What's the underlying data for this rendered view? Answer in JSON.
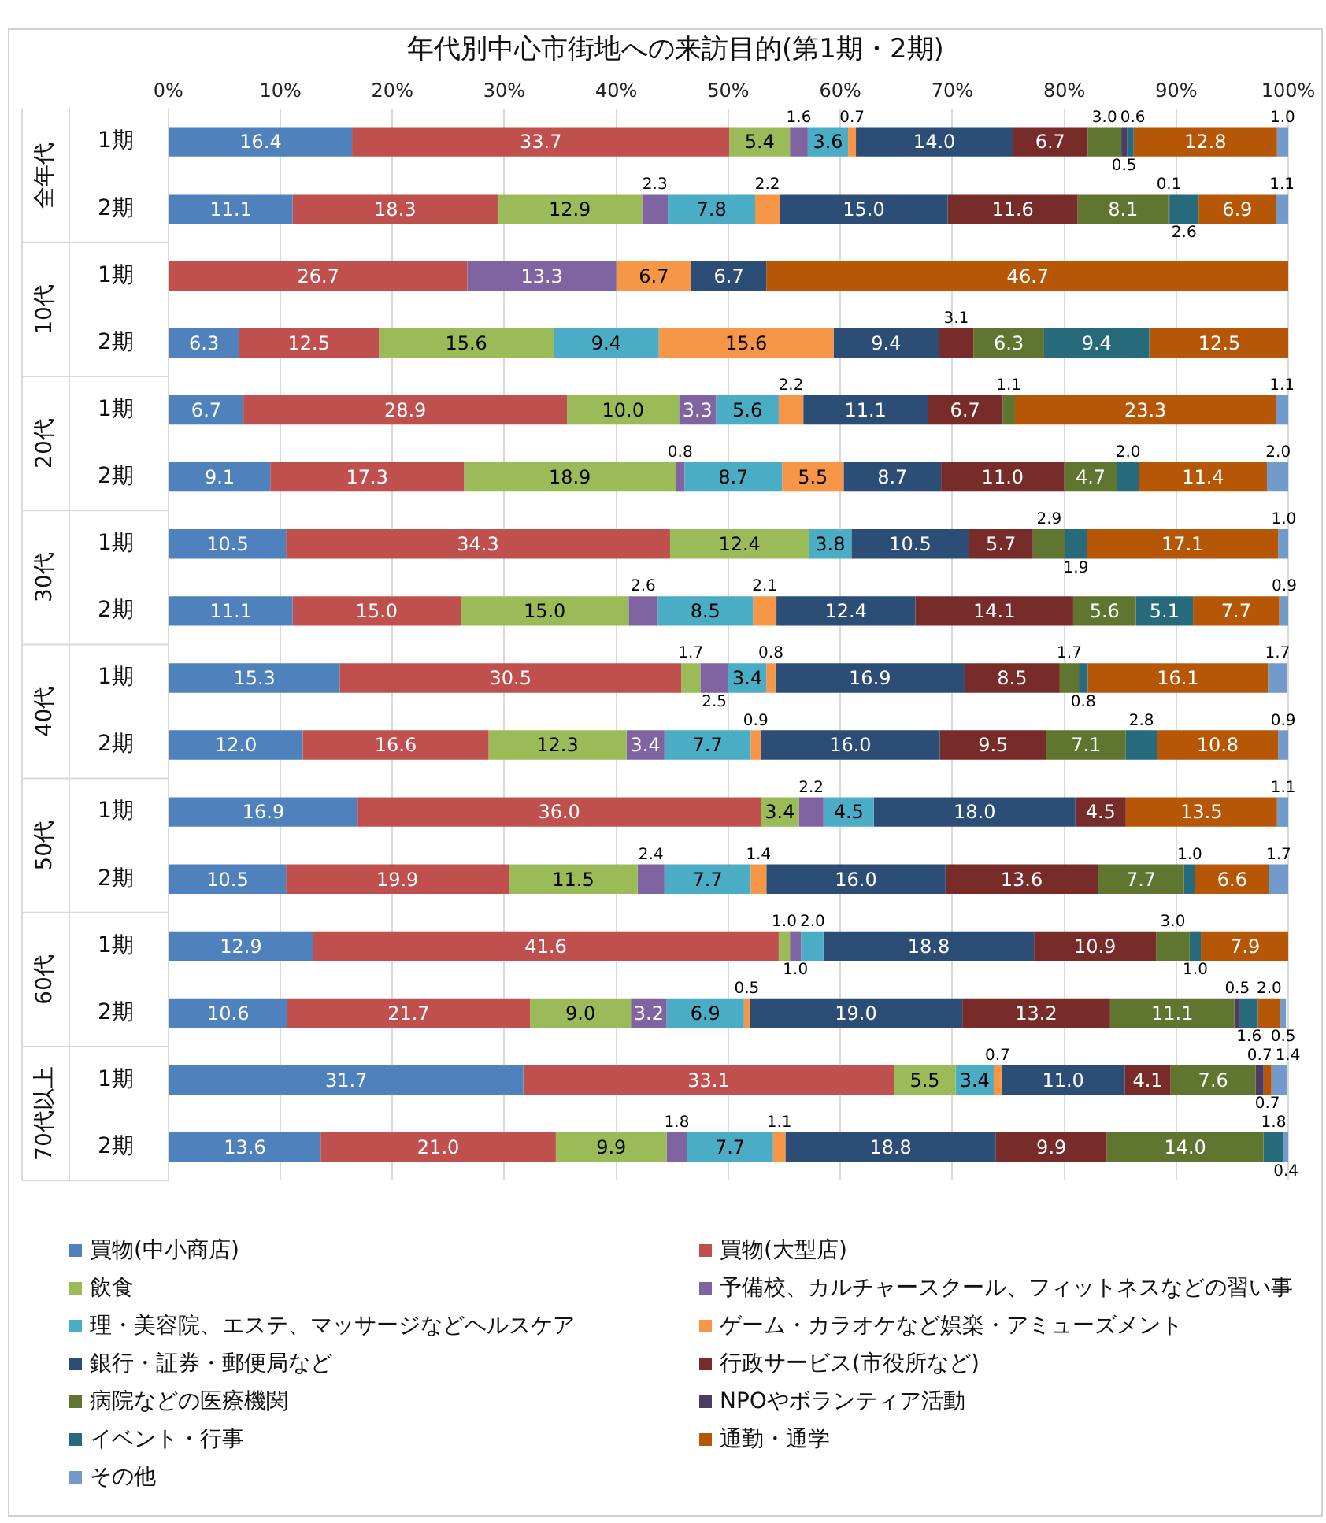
{
  "chart_data": {
    "type": "bar",
    "orientation": "horizontal",
    "stacked": true,
    "title": "年代別中心市街地への来訪目的(第1期・2期)",
    "categories": [
      "1期",
      "2期",
      "1期",
      "2期",
      "1期",
      "2期",
      "1期",
      "2期",
      "1期",
      "2期",
      "1期",
      "2期",
      "1期",
      "2期",
      "1期",
      "2期"
    ],
    "annotations": [
      "全年代",
      "10代",
      "20代",
      "30代",
      "40代",
      "50代",
      "60代",
      "70代以上"
    ],
    "xlim": [
      0,
      100
    ],
    "xticks": [
      {
        "value": 0,
        "label": "0%"
      },
      {
        "value": 10,
        "label": "10%"
      },
      {
        "value": 20,
        "label": "20%"
      },
      {
        "value": 30,
        "label": "30%"
      },
      {
        "value": 40,
        "label": "40%"
      },
      {
        "value": 50,
        "label": "50%"
      },
      {
        "value": 60,
        "label": "60%"
      },
      {
        "value": 70,
        "label": "70%"
      },
      {
        "value": 80,
        "label": "80%"
      },
      {
        "value": 90,
        "label": "90%"
      },
      {
        "value": 100,
        "label": "100%"
      }
    ],
    "grid": "x",
    "legend": "bottom",
    "series": [
      {
        "name": "買物(中小商店)",
        "color": "#4f81bd",
        "values": [
          16.4,
          11.1,
          null,
          6.3,
          6.7,
          9.1,
          10.5,
          11.1,
          15.3,
          12.0,
          16.9,
          10.5,
          12.9,
          10.6,
          31.7,
          13.6
        ],
        "value_labels": [
          "16.4",
          "11.1",
          null,
          "6.3",
          "6.7",
          "9.1",
          "10.5",
          "11.1",
          "15.3",
          "12.0",
          "16.9",
          "10.5",
          "12.9",
          "10.6",
          "31.7",
          "13.6"
        ]
      },
      {
        "name": "買物(大型店)",
        "color": "#c0504d",
        "values": [
          33.7,
          18.3,
          26.7,
          12.5,
          28.9,
          17.3,
          34.3,
          15.0,
          30.5,
          16.6,
          36.0,
          19.9,
          41.6,
          21.7,
          33.1,
          21.0
        ],
        "value_labels": [
          "33.7",
          "18.3",
          "26.7",
          "12.5",
          "28.9",
          "17.3",
          "34.3",
          "15.0",
          "30.5",
          "16.6",
          "36.0",
          "19.9",
          "41.6",
          "21.7",
          "33.1",
          "21.0"
        ]
      },
      {
        "name": "飲食",
        "color": "#9bbb59",
        "values": [
          5.4,
          12.9,
          null,
          15.6,
          10.0,
          18.9,
          12.4,
          15.0,
          1.7,
          12.3,
          3.4,
          11.5,
          1.0,
          9.0,
          5.5,
          9.9
        ],
        "value_labels": [
          "5.4",
          "12.9",
          null,
          "15.6",
          "10.0",
          "18.9",
          "12.4",
          "15.0",
          "1.7",
          "12.3",
          "3.4",
          "11.5",
          "1.0",
          "9.0",
          "5.5",
          "9.9"
        ]
      },
      {
        "name": "予備校、カルチャースクール、フィットネスなどの習い事",
        "color": "#8064a2",
        "values": [
          1.6,
          2.3,
          13.3,
          null,
          3.3,
          0.8,
          null,
          2.6,
          2.5,
          3.4,
          2.2,
          2.4,
          1.0,
          3.2,
          null,
          1.8
        ],
        "value_labels": [
          "1.6",
          "2.3",
          "13.3",
          null,
          "3.3",
          "0.8",
          null,
          "2.6",
          "2.5",
          "3.4",
          "2.2",
          "2.4",
          "1.0",
          "3.2",
          null,
          "1.8"
        ]
      },
      {
        "name": "理・美容院、エステ、マッサージなどヘルスケア",
        "color": "#4bacc6",
        "values": [
          3.6,
          7.8,
          null,
          9.4,
          5.6,
          8.7,
          3.8,
          8.5,
          3.4,
          7.7,
          4.5,
          7.7,
          2.0,
          6.9,
          3.4,
          7.7
        ],
        "value_labels": [
          "3.6",
          "7.8",
          null,
          "9.4",
          "5.6",
          "8.7",
          "3.8",
          "8.5",
          "3.4",
          "7.7",
          "4.5",
          "7.7",
          "2.0",
          "6.9",
          "3.4",
          "7.7"
        ]
      },
      {
        "name": "ゲーム・カラオケなど娯楽・アミューズメント",
        "color": "#f79646",
        "values": [
          0.7,
          2.2,
          6.7,
          15.6,
          2.2,
          5.5,
          null,
          2.1,
          0.8,
          0.9,
          null,
          1.4,
          null,
          0.5,
          0.7,
          1.1
        ],
        "value_labels": [
          "0.7",
          "2.2",
          "6.7",
          "15.6",
          "2.2",
          "5.5",
          null,
          "2.1",
          "0.8",
          "0.9",
          null,
          "1.4",
          null,
          "0.5",
          "0.7",
          "1.1"
        ]
      },
      {
        "name": "銀行・証券・郵便局など",
        "color": "#2c4d75",
        "values": [
          14.0,
          15.0,
          6.7,
          9.4,
          11.1,
          8.7,
          10.5,
          12.4,
          16.9,
          16.0,
          18.0,
          16.0,
          18.8,
          19.0,
          11.0,
          18.8
        ],
        "value_labels": [
          "14.0",
          "15.0",
          "6.7",
          "9.4",
          "11.1",
          "8.7",
          "10.5",
          "12.4",
          "16.9",
          "16.0",
          "18.0",
          "16.0",
          "18.8",
          "19.0",
          "11.0",
          "18.8"
        ]
      },
      {
        "name": "行政サービス(市役所など)",
        "color": "#772c2a",
        "values": [
          6.7,
          11.6,
          null,
          3.1,
          6.7,
          11.0,
          5.7,
          14.1,
          8.5,
          9.5,
          4.5,
          13.6,
          10.9,
          13.2,
          4.1,
          9.9
        ],
        "value_labels": [
          "6.7",
          "11.6",
          null,
          "3.1",
          "6.7",
          "11.0",
          "5.7",
          "14.1",
          "8.5",
          "9.5",
          "4.5",
          "13.6",
          "10.9",
          "13.2",
          "4.1",
          "9.9"
        ]
      },
      {
        "name": "病院などの医療機関",
        "color": "#5f7530",
        "values": [
          3.0,
          8.1,
          null,
          6.3,
          1.1,
          4.7,
          2.9,
          5.6,
          1.7,
          7.1,
          null,
          7.7,
          3.0,
          11.1,
          7.6,
          14.0
        ],
        "value_labels": [
          "3.0",
          "8.1",
          null,
          "6.3",
          "1.1",
          "4.7",
          "2.9",
          "5.6",
          "1.7",
          "7.1",
          null,
          "7.7",
          "3.0",
          "11.1",
          "7.6",
          "14.0"
        ]
      },
      {
        "name": "NPOやボランティア活動",
        "color": "#4d3b62",
        "values": [
          0.5,
          0.1,
          null,
          null,
          null,
          null,
          null,
          null,
          null,
          null,
          null,
          null,
          null,
          0.5,
          0.7,
          null
        ],
        "value_labels": [
          "0.5",
          "0.1",
          null,
          null,
          null,
          null,
          null,
          null,
          null,
          null,
          null,
          null,
          null,
          "0.5",
          "0.7",
          null
        ]
      },
      {
        "name": "イベント・行事",
        "color": "#276a7c",
        "values": [
          0.6,
          2.6,
          null,
          9.4,
          null,
          2.0,
          1.9,
          5.1,
          0.8,
          2.8,
          null,
          1.0,
          1.0,
          1.6,
          null,
          1.8
        ],
        "value_labels": [
          "0.6",
          "2.6",
          null,
          "9.4",
          null,
          "2.0",
          "1.9",
          "5.1",
          "0.8",
          "2.8",
          null,
          "1.0",
          "1.0",
          "1.6",
          null,
          "1.8"
        ]
      },
      {
        "name": "通勤・通学",
        "color": "#b65708",
        "values": [
          12.8,
          6.9,
          46.7,
          12.5,
          23.3,
          11.4,
          17.1,
          7.7,
          16.1,
          10.8,
          13.5,
          6.6,
          7.9,
          2.0,
          0.7,
          null
        ],
        "value_labels": [
          "12.8",
          "6.9",
          "46.7",
          "12.5",
          "23.3",
          "11.4",
          "17.1",
          "7.7",
          "16.1",
          "10.8",
          "13.5",
          "6.6",
          "7.9",
          "2.0",
          "0.7",
          null
        ]
      },
      {
        "name": "その他",
        "color": "#729aca",
        "values": [
          1.0,
          1.1,
          null,
          null,
          1.1,
          2.0,
          1.0,
          0.9,
          1.7,
          0.9,
          1.1,
          1.7,
          null,
          0.5,
          1.4,
          0.4
        ],
        "value_labels": [
          "1.0",
          "1.1",
          null,
          null,
          "1.1",
          "2.0",
          "1.0",
          "0.9",
          "1.7",
          "0.9",
          "1.1",
          "1.7",
          null,
          "0.5",
          "1.4",
          "0.4"
        ]
      }
    ]
  }
}
